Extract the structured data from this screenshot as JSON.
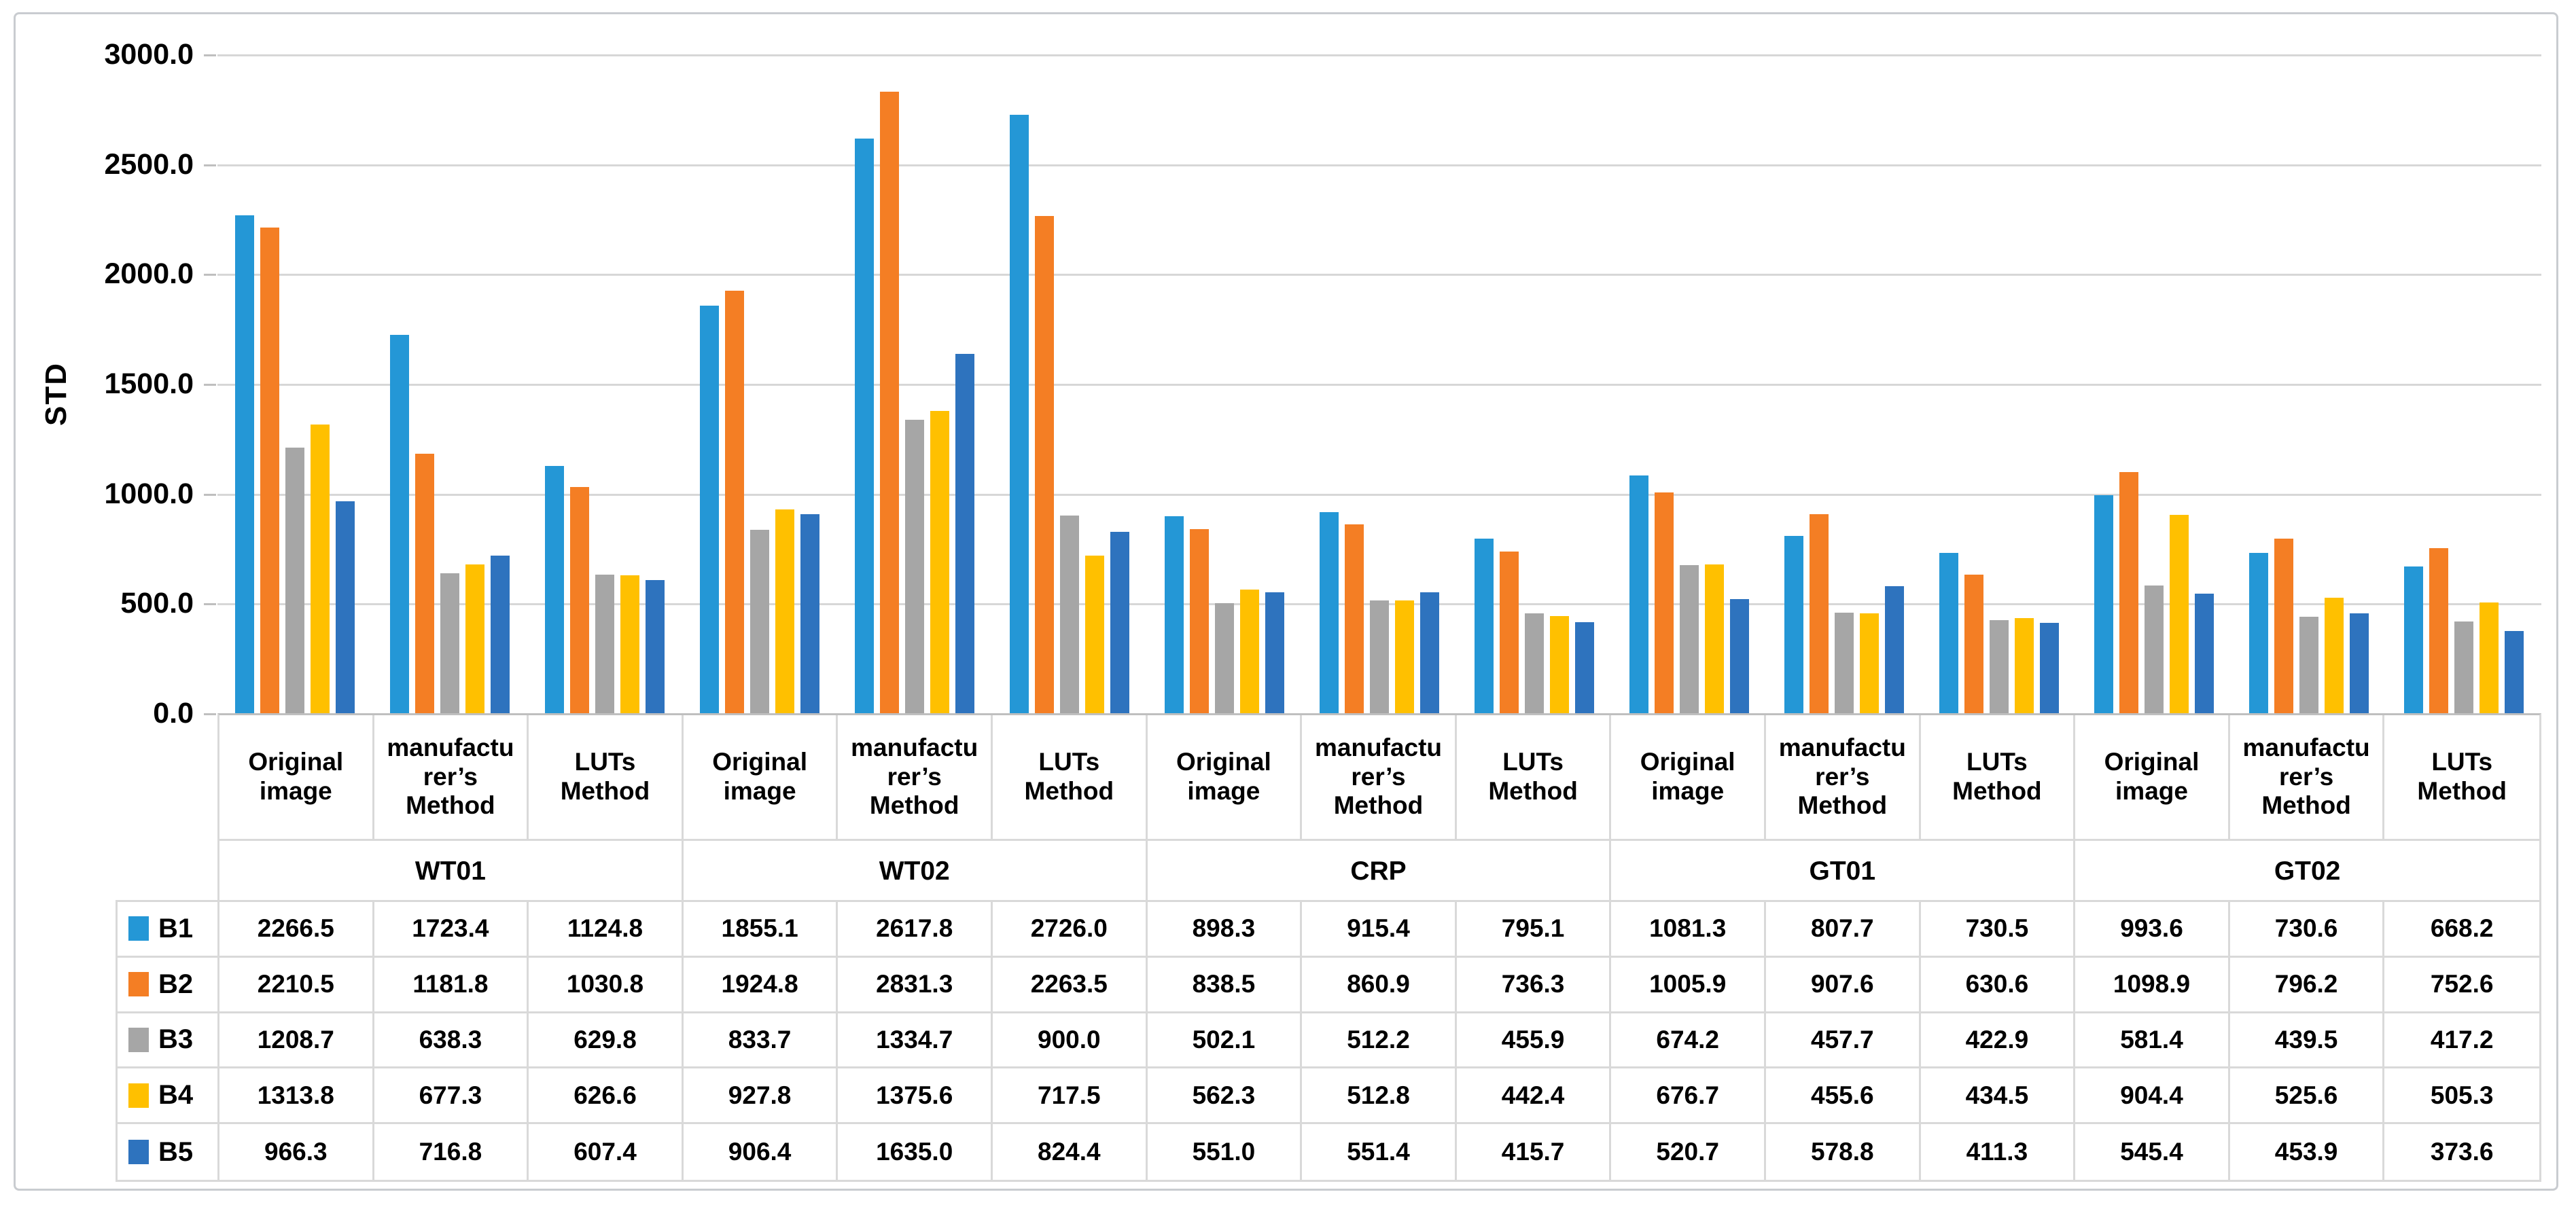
{
  "chart_data": {
    "type": "bar",
    "title": "",
    "ylabel": "STD",
    "xlabel": "",
    "ylim": [
      0,
      3000
    ],
    "ytick_step": 500,
    "ytick_labels": [
      "3000.0",
      "2500.0",
      "2000.0",
      "1500.0",
      "1000.0",
      "500.0",
      "0.0"
    ],
    "grid": true,
    "legend_position": "table-left",
    "groups": [
      "WT01",
      "WT02",
      "CRP",
      "GT01",
      "GT02"
    ],
    "categories_per_group": [
      "Original image",
      "manufacturer’s Method",
      "LUTs Method"
    ],
    "series": [
      {
        "name": "B1",
        "color": "#2497d6",
        "values": [
          2266.5,
          1723.4,
          1124.8,
          1855.1,
          2617.8,
          2726.0,
          898.3,
          915.4,
          795.1,
          1081.3,
          807.7,
          730.5,
          993.6,
          730.6,
          668.2
        ]
      },
      {
        "name": "B2",
        "color": "#f47e24",
        "values": [
          2210.5,
          1181.8,
          1030.8,
          1924.8,
          2831.3,
          2263.5,
          838.5,
          860.9,
          736.3,
          1005.9,
          907.6,
          630.6,
          1098.9,
          796.2,
          752.6
        ]
      },
      {
        "name": "B3",
        "color": "#a6a6a6",
        "values": [
          1208.7,
          638.3,
          629.8,
          833.7,
          1334.7,
          900.0,
          502.1,
          512.2,
          455.9,
          674.2,
          457.7,
          422.9,
          581.4,
          439.5,
          417.2
        ]
      },
      {
        "name": "B4",
        "color": "#ffc000",
        "values": [
          1313.8,
          677.3,
          626.6,
          927.8,
          1375.6,
          717.5,
          562.3,
          512.8,
          442.4,
          676.7,
          455.6,
          434.5,
          904.4,
          525.6,
          505.3
        ]
      },
      {
        "name": "B5",
        "color": "#2e73be",
        "values": [
          966.3,
          716.8,
          607.4,
          906.4,
          1635.0,
          824.4,
          551.0,
          551.4,
          415.7,
          520.7,
          578.8,
          411.3,
          545.4,
          453.9,
          373.6
        ]
      }
    ],
    "colors": {
      "gridline": "#d7d7d7",
      "table_border": "#d9d9d9",
      "text": "#000000"
    }
  }
}
